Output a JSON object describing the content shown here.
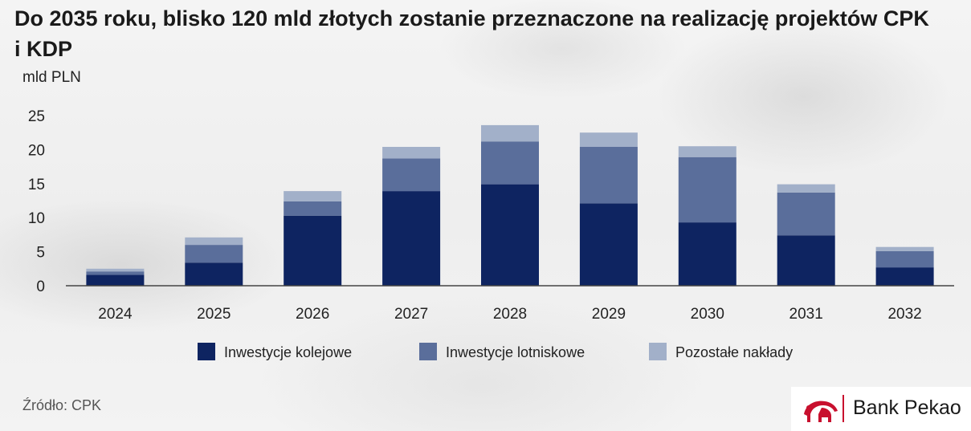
{
  "header": {
    "title": "Do 2035 roku, blisko 120 mld złotych zostanie przeznaczone na realizację projektów CPK i KDP"
  },
  "footer": {
    "source": "Źródło: CPK",
    "brand": "Bank Pekao"
  },
  "colors": {
    "series_1": "#0e2461",
    "series_2": "#5a6e9b",
    "series_3": "#a2b0c9",
    "brand_accent": "#c8102e"
  },
  "chart_data": {
    "type": "bar",
    "stacked": true,
    "title": "Do 2035 roku, blisko 120 mld złotych zostanie przeznaczone na realizację projektów CPK i KDP",
    "ylabel": "mld PLN",
    "xlabel": "",
    "ylim": [
      0,
      25
    ],
    "yticks": [
      0,
      5,
      10,
      15,
      20,
      25
    ],
    "grid": false,
    "legend": "bottom",
    "categories": [
      "2024",
      "2025",
      "2026",
      "2027",
      "2028",
      "2029",
      "2030",
      "2031",
      "2032"
    ],
    "series": [
      {
        "name": "Inwestycje kolejowe",
        "values": [
          1.6,
          3.4,
          10.3,
          13.9,
          14.9,
          12.1,
          9.3,
          7.4,
          2.7
        ]
      },
      {
        "name": "Inwestycje lotniskowe",
        "values": [
          0.5,
          2.6,
          2.1,
          4.8,
          6.3,
          8.3,
          9.6,
          6.3,
          2.4
        ]
      },
      {
        "name": "Pozostałe nakłady",
        "values": [
          0.4,
          1.1,
          1.5,
          1.7,
          2.4,
          2.1,
          1.6,
          1.2,
          0.6
        ]
      }
    ]
  }
}
